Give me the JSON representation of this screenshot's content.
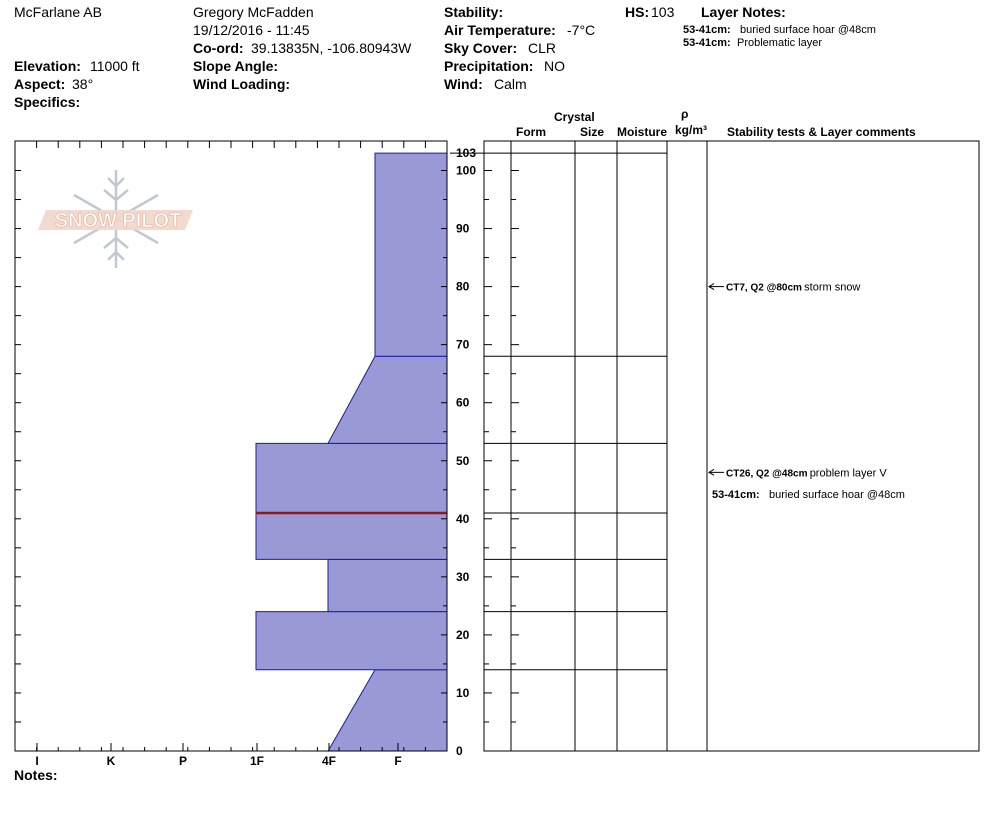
{
  "header": {
    "location": "McFarlane AB",
    "observer": "Gregory McFadden",
    "datetime": "19/12/2016 - 11:45",
    "coord_label": "Co-ord:",
    "coord_value": "39.13835N, -106.80943W",
    "elevation_label": "Elevation:",
    "elevation_value": "11000 ft",
    "aspect_label": "Aspect:",
    "aspect_value": "38°",
    "specifics_label": "Specifics:",
    "slope_label": "Slope Angle:",
    "wind_loading_label": "Wind Loading:",
    "stability_label": "Stability:",
    "air_temp_label": "Air Temperature:",
    "air_temp_value": "-7°C",
    "sky_label": "Sky Cover:",
    "sky_value": "CLR",
    "precip_label": "Precipitation:",
    "precip_value": "NO",
    "wind_label": "Wind:",
    "wind_value": "Calm",
    "hs_label": "HS:",
    "hs_value": "103",
    "layer_notes_title": "Layer Notes:",
    "layer_notes": [
      {
        "range": "53-41cm:",
        "text": "buried surface hoar @48cm"
      },
      {
        "range": "53-41cm:",
        "text": "Problematic layer"
      }
    ]
  },
  "logo_text": "SNOW PILOT",
  "columns": {
    "crystal": "Crystal",
    "form": "Form",
    "size": "Size",
    "moisture": "Moisture",
    "rho": "ρ",
    "density_unit": "kg/m³",
    "comments": "Stability tests & Layer comments"
  },
  "notes_label": "Notes:",
  "chart_data": {
    "type": "bar",
    "title": "",
    "ylabel": "",
    "ylim": [
      0,
      103
    ],
    "hs": 103,
    "y_ticks": [
      0,
      10,
      20,
      30,
      40,
      50,
      60,
      70,
      80,
      90,
      100
    ],
    "hs_tick_label": "103",
    "hardness_scale": [
      "I",
      "K",
      "P",
      "1F",
      "4F",
      "F"
    ],
    "hardness_note": "hardness index: F=1 (right) ... I=6 (left)",
    "layers": [
      {
        "bottom": 0,
        "top": 14,
        "hardness_bottom": "4F",
        "hardness_top": "4F+"
      },
      {
        "bottom": 14,
        "top": 24,
        "hardness_bottom": "1F",
        "hardness_top": "1F"
      },
      {
        "bottom": 24,
        "top": 33,
        "hardness_bottom": "4F",
        "hardness_top": "4F"
      },
      {
        "bottom": 33,
        "top": 53,
        "hardness_bottom": "1F",
        "hardness_top": "1F"
      },
      {
        "bottom": 53,
        "top": 68,
        "hardness_bottom": "4F",
        "hardness_top": "F+"
      },
      {
        "bottom": 68,
        "top": 103,
        "hardness_bottom": "F+",
        "hardness_top": "F+"
      }
    ],
    "weak_layer_depth": 41,
    "layer_boundaries": [
      14,
      24,
      33,
      41,
      53,
      68,
      103
    ],
    "stability_tests": [
      {
        "depth": 80,
        "label": "CT7, Q2 @80cm",
        "comment": "storm snow"
      },
      {
        "depth": 48,
        "label": "CT26, Q2 @48cm",
        "comment": "problem layer  V"
      }
    ],
    "layer_comments": [
      {
        "range": "53-41cm:",
        "text": "buried surface hoar @48cm"
      }
    ],
    "colors": {
      "fill": "#9999d6",
      "stroke": "#1a1aa8",
      "weak_layer": "#8b1a1a"
    }
  }
}
